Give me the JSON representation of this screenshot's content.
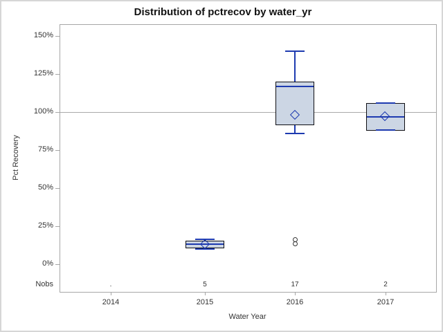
{
  "chart_data": {
    "type": "box",
    "title": "Distribution of pctrecov by water_yr",
    "xlabel": "Water Year",
    "ylabel": "Pct Recovery",
    "categories": [
      "2014",
      "2015",
      "2016",
      "2017"
    ],
    "y_ticks": [
      "0%",
      "25%",
      "50%",
      "75%",
      "100%",
      "125%",
      "150%"
    ],
    "y_tick_values": [
      0,
      25,
      50,
      75,
      100,
      125,
      150
    ],
    "ylim": [
      0,
      150
    ],
    "grid": "off",
    "reference_line_y": 100,
    "nobs_label": "Nobs",
    "nobs": [
      ".",
      "5",
      "17",
      "2"
    ],
    "series": [
      {
        "category": "2014",
        "nobs": ".",
        "box": null,
        "outliers": []
      },
      {
        "category": "2015",
        "nobs": "5",
        "box": {
          "low": 10,
          "q1": 10.5,
          "median": 13,
          "q3": 15.5,
          "high": 16.5,
          "mean": 13
        },
        "outliers": []
      },
      {
        "category": "2016",
        "nobs": "17",
        "box": {
          "low": 86,
          "q1": 91.5,
          "median": 117,
          "q3": 120,
          "high": 140,
          "mean": 98
        },
        "outliers": [
          16,
          13.5
        ]
      },
      {
        "category": "2017",
        "nobs": "2",
        "box": {
          "low": 88,
          "q1": 88,
          "median": 97,
          "q3": 106,
          "high": 106,
          "mean": 97
        },
        "outliers": []
      }
    ],
    "colors": {
      "box_fill": "#ccd6e4",
      "box_border": "#0d0d12",
      "line_blue": "#1d3ab0",
      "reference_line": "#a9a9a9",
      "frame": "#a6a6a6",
      "text": "#333333",
      "outlier": "#333333"
    }
  }
}
